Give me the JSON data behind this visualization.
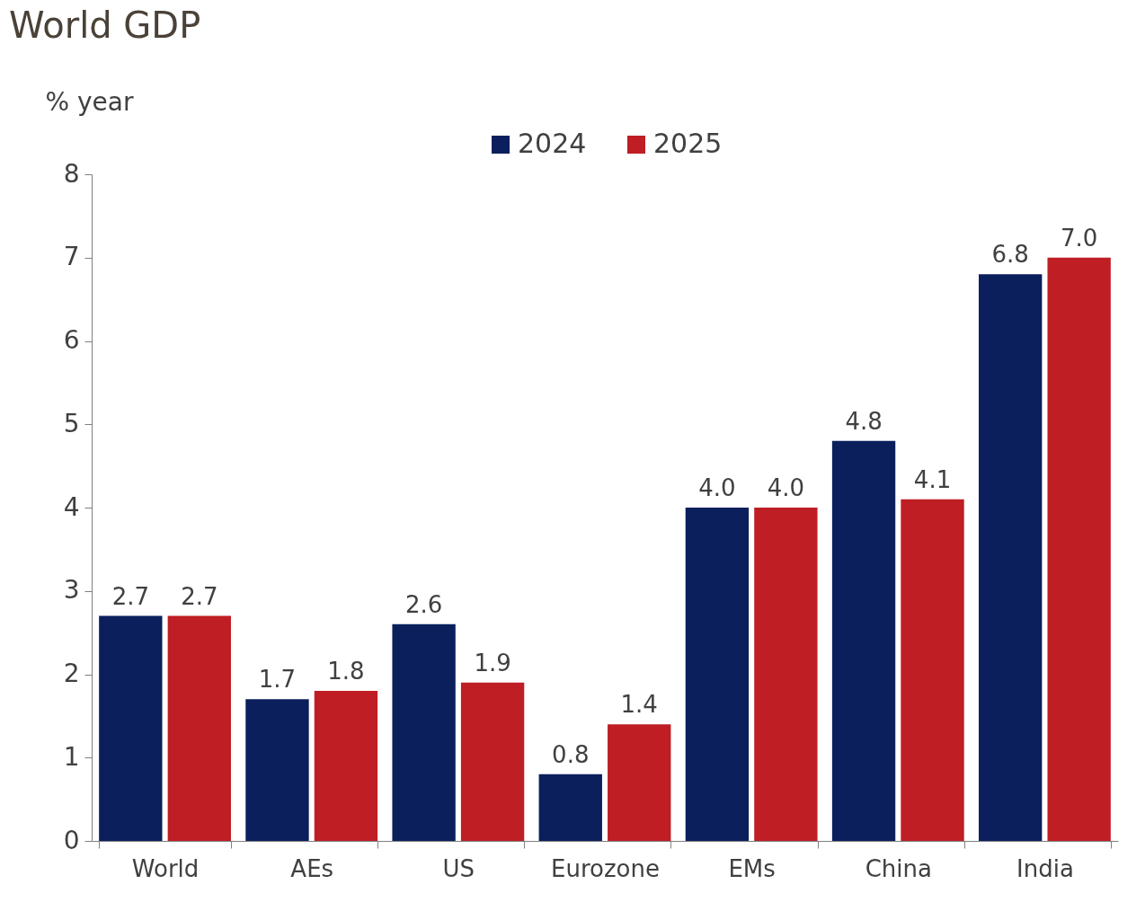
{
  "chart_data": {
    "type": "bar",
    "title": "World GDP",
    "ylabel": "% year",
    "categories": [
      "World",
      "AEs",
      "US",
      "Eurozone",
      "EMs",
      "China",
      "India"
    ],
    "series": [
      {
        "name": "2024",
        "color": "#0b1f5c",
        "values": [
          2.7,
          1.7,
          2.6,
          0.8,
          4.0,
          4.8,
          6.8
        ],
        "value_labels": [
          "2.7",
          "1.7",
          "2.6",
          "0.8",
          "4.0",
          "4.8",
          "6.8"
        ]
      },
      {
        "name": "2025",
        "color": "#be1e24",
        "values": [
          2.7,
          1.8,
          1.9,
          1.4,
          4.0,
          4.1,
          7.0
        ],
        "value_labels": [
          "2.7",
          "1.8",
          "1.9",
          "1.4",
          "4.0",
          "4.1",
          "7.0"
        ]
      }
    ],
    "ylim": [
      0,
      8
    ],
    "yticks": [
      0,
      1,
      2,
      3,
      4,
      5,
      6,
      7,
      8
    ],
    "grid": false,
    "legend": "top"
  }
}
